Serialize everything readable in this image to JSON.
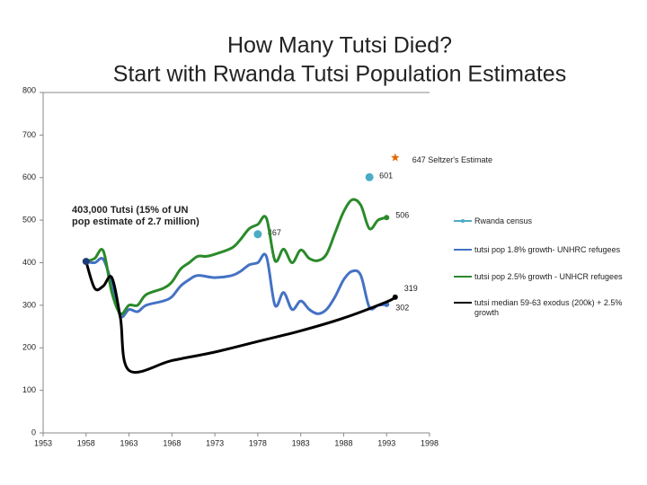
{
  "chart_data": {
    "type": "line",
    "title": "How Many Tutsi Died?",
    "subtitle": "Start with Rwanda Tutsi Population Estimates",
    "xlim": [
      1953,
      1998
    ],
    "xticks": [
      1953,
      1958,
      1963,
      1968,
      1973,
      1978,
      1983,
      1988,
      1993,
      1998
    ],
    "ylim": [
      0,
      800
    ],
    "yticks": [
      0,
      100,
      200,
      300,
      400,
      500,
      600,
      700,
      800
    ],
    "grid": false,
    "legend": "right",
    "series": [
      {
        "name": "Rwanda census",
        "color": "#4bacc6",
        "style": "points",
        "x": [
          1978,
          1991
        ],
        "values": [
          467,
          601
        ]
      },
      {
        "name": "tutsi pop 1.8% growth- UNHRC refugees",
        "color": "#4472c4",
        "style": "line",
        "x": [
          1958,
          1959,
          1960,
          1961,
          1962,
          1963,
          1964,
          1965,
          1967,
          1968,
          1969,
          1970,
          1971,
          1973,
          1975,
          1976,
          1977,
          1978,
          1979,
          1980,
          1981,
          1982,
          1983,
          1984,
          1985,
          1986,
          1987,
          1988,
          1989,
          1990,
          1991,
          1992,
          1993
        ],
        "values": [
          403,
          400,
          408,
          350,
          275,
          290,
          285,
          300,
          310,
          320,
          345,
          360,
          370,
          365,
          370,
          380,
          395,
          400,
          415,
          300,
          330,
          290,
          310,
          290,
          280,
          290,
          320,
          360,
          380,
          370,
          295,
          300,
          302
        ]
      },
      {
        "name": "tutsi pop 2.5% growth - UNHCR refugees",
        "color": "#2a8a2a",
        "style": "line",
        "x": [
          1958,
          1959,
          1960,
          1961,
          1962,
          1963,
          1964,
          1965,
          1967,
          1968,
          1969,
          1970,
          1971,
          1972,
          1973,
          1975,
          1976,
          1977,
          1978,
          1979,
          1980,
          1981,
          1982,
          1983,
          1984,
          1985,
          1986,
          1987,
          1988,
          1989,
          1990,
          1991,
          1992,
          1993
        ],
        "values": [
          403,
          410,
          428,
          330,
          280,
          300,
          300,
          325,
          340,
          355,
          385,
          400,
          415,
          415,
          420,
          435,
          455,
          480,
          490,
          505,
          405,
          432,
          400,
          430,
          410,
          405,
          420,
          470,
          520,
          548,
          535,
          480,
          500,
          506
        ]
      },
      {
        "name": "tutsi median 59-63 exodus (200k) + 2.5% growth",
        "color": "#000000",
        "style": "line",
        "x": [
          1958,
          1959,
          1960,
          1961,
          1962,
          1963,
          1968,
          1973,
          1978,
          1983,
          1988,
          1993,
          1994
        ],
        "values": [
          403,
          340,
          345,
          365,
          270,
          147,
          170,
          190,
          215,
          240,
          270,
          308,
          319
        ]
      }
    ],
    "annotations": [
      {
        "x": 1994,
        "y": 647,
        "text": "647 Seltzer's Estimate",
        "color": "#e46c0a"
      },
      {
        "x": 1958,
        "y": 403,
        "text": "403,000 Tutsi (15% of UN pop estimate of 2.7 million)",
        "color": "#1f3a7a"
      }
    ]
  }
}
